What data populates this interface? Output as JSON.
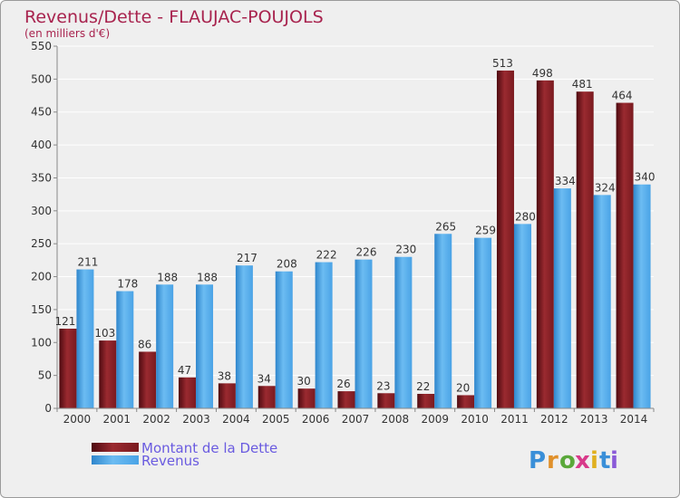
{
  "chart_data": {
    "type": "bar",
    "title": "Revenus/Dette - FLAUJAC-POUJOLS",
    "subtitle": "(en milliers d'€)",
    "categories": [
      "2000",
      "2001",
      "2002",
      "2003",
      "2004",
      "2005",
      "2006",
      "2007",
      "2008",
      "2009",
      "2010",
      "2011",
      "2012",
      "2013",
      "2014"
    ],
    "series": [
      {
        "name": "Montant de la Dette",
        "color": "#7a1a1f",
        "values": [
          121,
          103,
          86,
          47,
          38,
          34,
          30,
          26,
          23,
          22,
          20,
          513,
          498,
          481,
          464
        ]
      },
      {
        "name": "Revenus",
        "color": "#4aa3e6",
        "values": [
          211,
          178,
          188,
          188,
          217,
          208,
          222,
          226,
          230,
          265,
          259,
          280,
          334,
          324,
          340
        ]
      }
    ],
    "ylim": [
      0,
      550
    ],
    "yticks": [
      0,
      50,
      100,
      150,
      200,
      250,
      300,
      350,
      400,
      450,
      500,
      550
    ],
    "grid": true,
    "xlabel": "",
    "ylabel": "",
    "legend_position": "bottom-left"
  },
  "branding": {
    "logo_letters": [
      "P",
      "r",
      "o",
      "x",
      "i",
      "t",
      "i"
    ],
    "logo_colors": [
      "#3a8fd8",
      "#e0902a",
      "#5aa83a",
      "#d83a8a",
      "#e0b020",
      "#3a8fd8",
      "#8a5ad8"
    ]
  }
}
